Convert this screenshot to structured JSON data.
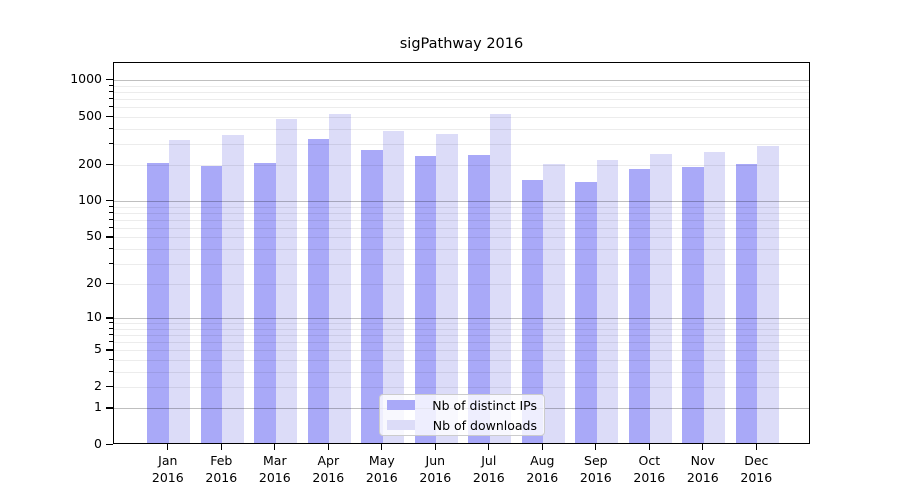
{
  "title": "sigPathway 2016",
  "x_axis": {
    "months": [
      "Jan",
      "Feb",
      "Mar",
      "Apr",
      "May",
      "Jun",
      "Jul",
      "Aug",
      "Sep",
      "Oct",
      "Nov",
      "Dec"
    ],
    "year": "2016"
  },
  "y_axis": {
    "tick_values": [
      0,
      1,
      2,
      5,
      10,
      20,
      50,
      100,
      200,
      500,
      1000
    ],
    "tick_labels": [
      "0",
      "1",
      "2",
      "5",
      "10",
      "20",
      "50",
      "100",
      "200",
      "500",
      "1000"
    ]
  },
  "legend": {
    "items": [
      {
        "label": "Nb of distinct IPs",
        "color": "#a9a9f8"
      },
      {
        "label": "Nb of downloads",
        "color": "#dcdcf8"
      }
    ],
    "position": "lower center"
  },
  "chart_data": {
    "type": "bar",
    "title": "sigPathway 2016",
    "categories": [
      "Jan 2016",
      "Feb 2016",
      "Mar 2016",
      "Apr 2016",
      "May 2016",
      "Jun 2016",
      "Jul 2016",
      "Aug 2016",
      "Sep 2016",
      "Oct 2016",
      "Nov 2016",
      "Dec 2016"
    ],
    "series": [
      {
        "name": "Nb of distinct IPs",
        "color": "#a9a9f8",
        "values": [
          201,
          190,
          199,
          315,
          257,
          230,
          234,
          145,
          140,
          178,
          184,
          198
        ]
      },
      {
        "name": "Nb of downloads",
        "color": "#dcdcf8",
        "values": [
          309,
          340,
          460,
          507,
          369,
          347,
          503,
          197,
          211,
          238,
          247,
          278
        ]
      }
    ],
    "yscale": "log1p",
    "ylim": [
      0,
      1385
    ],
    "grid": "horizontal, log minor + major gridlines",
    "legend_position": "lower center"
  }
}
